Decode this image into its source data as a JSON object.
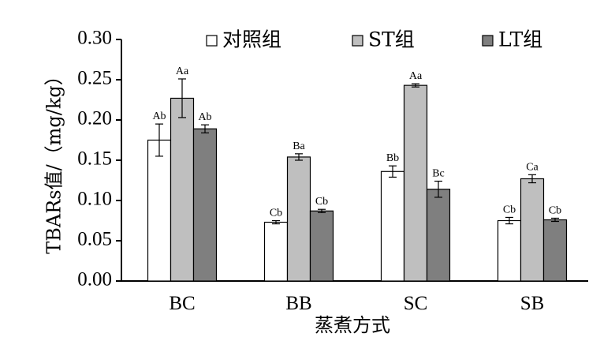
{
  "chart_data": {
    "type": "bar",
    "title": "",
    "xlabel": "蒸煮方式",
    "ylabel": "TBARs值/（mg/kg）",
    "ylim": [
      0,
      0.3
    ],
    "yticks": [
      "0.00",
      "0.05",
      "0.10",
      "0.15",
      "0.20",
      "0.25",
      "0.30"
    ],
    "categories": [
      "BC",
      "BB",
      "SC",
      "SB"
    ],
    "legend_position": "top",
    "grid": false,
    "series": [
      {
        "name": "对照组",
        "color": "#ffffff",
        "values": [
          0.175,
          0.073,
          0.136,
          0.075
        ],
        "errors": [
          0.02,
          0.002,
          0.007,
          0.004
        ],
        "labels": [
          "Ab",
          "Cb",
          "Bb",
          "Cb"
        ]
      },
      {
        "name": "ST组",
        "color": "#bfbfbf",
        "values": [
          0.227,
          0.154,
          0.243,
          0.127
        ],
        "errors": [
          0.024,
          0.004,
          0.002,
          0.005
        ],
        "labels": [
          "Aa",
          "Ba",
          "Aa",
          "Ca"
        ]
      },
      {
        "name": "LT组",
        "color": "#7f7f7f",
        "values": [
          0.189,
          0.087,
          0.114,
          0.076
        ],
        "errors": [
          0.005,
          0.002,
          0.01,
          0.002
        ],
        "labels": [
          "Ab",
          "Cb",
          "Bc",
          "Cb"
        ]
      }
    ]
  }
}
